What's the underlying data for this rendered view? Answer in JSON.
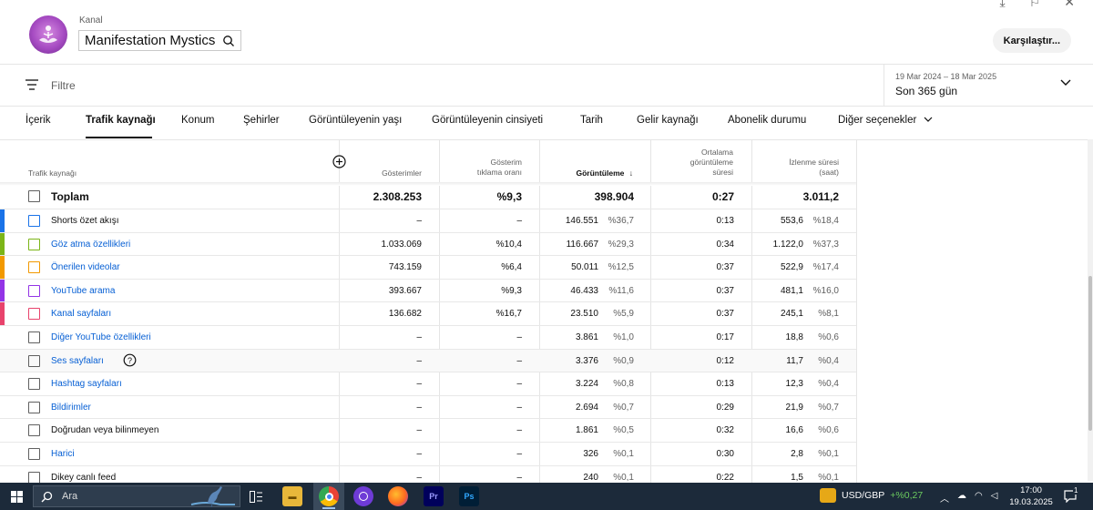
{
  "header": {
    "kanal_label": "Kanal",
    "channel_name": "Manifestation Mystics",
    "compare_label": "Karşılaştır..."
  },
  "filter": {
    "placeholder": "Filtre",
    "date_range": "19 Mar 2024 – 18 Mar 2025",
    "period": "Son 365 gün"
  },
  "tabs": [
    {
      "label": "İçerik"
    },
    {
      "label": "Trafik kaynağı",
      "active": true
    },
    {
      "label": "Konum"
    },
    {
      "label": "Şehirler"
    },
    {
      "label": "Görüntüleyenin yaşı"
    },
    {
      "label": "Görüntüleyenin cinsiyeti"
    },
    {
      "label": "Tarih"
    },
    {
      "label": "Gelir kaynağı"
    },
    {
      "label": "Abonelik durumu"
    },
    {
      "label": "Diğer seçenekler"
    }
  ],
  "table": {
    "headers": {
      "source": "Trafik kaynağı",
      "impressions": "Gösterimler",
      "ctr_line1": "Gösterim",
      "ctr_line2": "tıklama oranı",
      "views": "Görüntüleme",
      "avd_line1": "Ortalama",
      "avd_line2": "görüntüleme",
      "avd_line3": "süresi",
      "wt_line1": "İzlenme süresi",
      "wt_line2": "(saat)"
    },
    "total": {
      "label": "Toplam",
      "impressions": "2.308.253",
      "ctr": "%9,3",
      "views": "398.904",
      "avd": "0:27",
      "watch": "3.011,2"
    },
    "rows": [
      {
        "label": "Shorts özet akışı",
        "impressions": "–",
        "ctr": "–",
        "views": "146.551",
        "views_pct": "%36,7",
        "avd": "0:13",
        "watch": "553,6",
        "watch_pct": "%18,4",
        "color": "#1a73e8",
        "link": false
      },
      {
        "label": "Göz atma özellikleri",
        "impressions": "1.033.069",
        "ctr": "%10,4",
        "views": "116.667",
        "views_pct": "%29,3",
        "avd": "0:34",
        "watch": "1.122,0",
        "watch_pct": "%37,3",
        "color": "#7cb518",
        "link": true
      },
      {
        "label": "Önerilen videolar",
        "impressions": "743.159",
        "ctr": "%6,4",
        "views": "50.011",
        "views_pct": "%12,5",
        "avd": "0:37",
        "watch": "522,9",
        "watch_pct": "%17,4",
        "color": "#f29900",
        "link": true
      },
      {
        "label": "YouTube arama",
        "impressions": "393.667",
        "ctr": "%9,3",
        "views": "46.433",
        "views_pct": "%11,6",
        "avd": "0:37",
        "watch": "481,1",
        "watch_pct": "%16,0",
        "color": "#9334e6",
        "link": true
      },
      {
        "label": "Kanal sayfaları",
        "impressions": "136.682",
        "ctr": "%16,7",
        "views": "23.510",
        "views_pct": "%5,9",
        "avd": "0:37",
        "watch": "245,1",
        "watch_pct": "%8,1",
        "color": "#e8436c",
        "link": true
      },
      {
        "label": "Diğer YouTube özellikleri",
        "impressions": "–",
        "ctr": "–",
        "views": "3.861",
        "views_pct": "%1,0",
        "avd": "0:17",
        "watch": "18,8",
        "watch_pct": "%0,6",
        "color": "",
        "link": true
      },
      {
        "label": "Ses sayfaları",
        "impressions": "–",
        "ctr": "–",
        "views": "3.376",
        "views_pct": "%0,9",
        "avd": "0:12",
        "watch": "11,7",
        "watch_pct": "%0,4",
        "color": "",
        "link": true,
        "help": true,
        "hover": true
      },
      {
        "label": "Hashtag sayfaları",
        "impressions": "–",
        "ctr": "–",
        "views": "3.224",
        "views_pct": "%0,8",
        "avd": "0:13",
        "watch": "12,3",
        "watch_pct": "%0,4",
        "color": "",
        "link": true
      },
      {
        "label": "Bildirimler",
        "impressions": "–",
        "ctr": "–",
        "views": "2.694",
        "views_pct": "%0,7",
        "avd": "0:29",
        "watch": "21,9",
        "watch_pct": "%0,7",
        "color": "",
        "link": true
      },
      {
        "label": "Doğrudan veya bilinmeyen",
        "impressions": "–",
        "ctr": "–",
        "views": "1.861",
        "views_pct": "%0,5",
        "avd": "0:32",
        "watch": "16,6",
        "watch_pct": "%0,6",
        "color": "",
        "link": false
      },
      {
        "label": "Harici",
        "impressions": "–",
        "ctr": "–",
        "views": "326",
        "views_pct": "%0,1",
        "avd": "0:30",
        "watch": "2,8",
        "watch_pct": "%0,1",
        "color": "",
        "link": true
      },
      {
        "label": "Dikey canlı feed",
        "impressions": "–",
        "ctr": "–",
        "views": "240",
        "views_pct": "%0,1",
        "avd": "0:22",
        "watch": "1,5",
        "watch_pct": "%0,1",
        "color": "",
        "link": false
      }
    ]
  },
  "taskbar": {
    "search_placeholder": "Ara",
    "ticker_symbol": "USD/GBP",
    "ticker_change": "+%0,27",
    "time": "17:00",
    "date": "19.03.2025",
    "notification_count": "1"
  }
}
